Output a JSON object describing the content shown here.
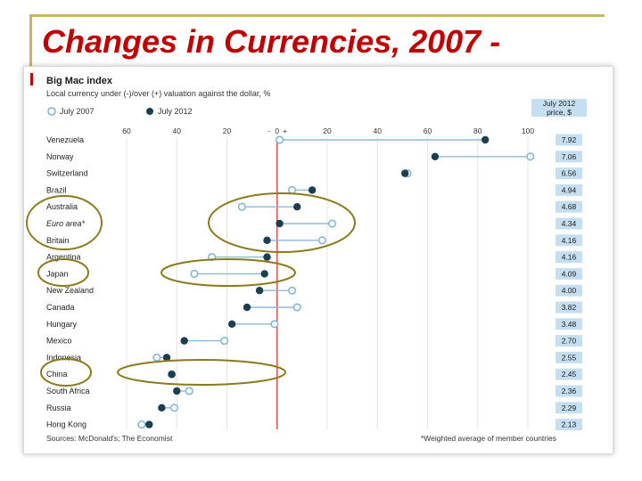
{
  "slide": {
    "title": "Changes in Currencies, 2007 -"
  },
  "colors": {
    "title": "#c00000",
    "accent": "#c8b560",
    "series_2007": "#7fb4d6",
    "series_2012": "#1c3f4f",
    "zero_line": "#d9534f",
    "price_box": "#c5dff0",
    "highlight_circle": "#8a7a1e"
  },
  "chart_data": {
    "type": "scatter",
    "title": "Big Mac index",
    "subtitle": "Local currency under (-)/over (+) valuation against the dollar, %",
    "legend": [
      "July 2007",
      "July 2012"
    ],
    "legend_position": "top-left",
    "price_header": [
      "July 2012",
      "price, $"
    ],
    "x_ticks": [
      "60",
      "40",
      "20",
      "-",
      "0",
      "+",
      "20",
      "40",
      "60",
      "80",
      "100"
    ],
    "xlim": [
      -60,
      100
    ],
    "categories": [
      "Venezuela",
      "Norway",
      "Switzerland",
      "Brazil",
      "Australia",
      "Euro area*",
      "Britain",
      "Argentina",
      "Japan",
      "New Zealand",
      "Canada",
      "Hungary",
      "Mexico",
      "Indonesia",
      "China",
      "South Africa",
      "Russia",
      "Hong Kong"
    ],
    "series": [
      {
        "name": "July 2007",
        "values": [
          1,
          101,
          52,
          6,
          -14,
          22,
          18,
          -26,
          -33,
          6,
          8,
          -1,
          -21,
          -48,
          -42,
          -35,
          -41,
          -54
        ]
      },
      {
        "name": "July 2012",
        "values": [
          83,
          63,
          51,
          14,
          8,
          1,
          -4,
          -4,
          -5,
          -7,
          -12,
          -18,
          -37,
          -44,
          -42,
          -40,
          -46,
          -51
        ]
      }
    ],
    "prices": [
      "7.92",
      "7.06",
      "6.56",
      "4.94",
      "4.68",
      "4.34",
      "4.16",
      "4.16",
      "4.09",
      "4.00",
      "3.82",
      "3.48",
      "2.70",
      "2.55",
      "2.45",
      "2.36",
      "2.29",
      "2.13"
    ],
    "sources": "Sources: McDonald's; The Economist",
    "footnote": "*Weighted average of member countries"
  }
}
